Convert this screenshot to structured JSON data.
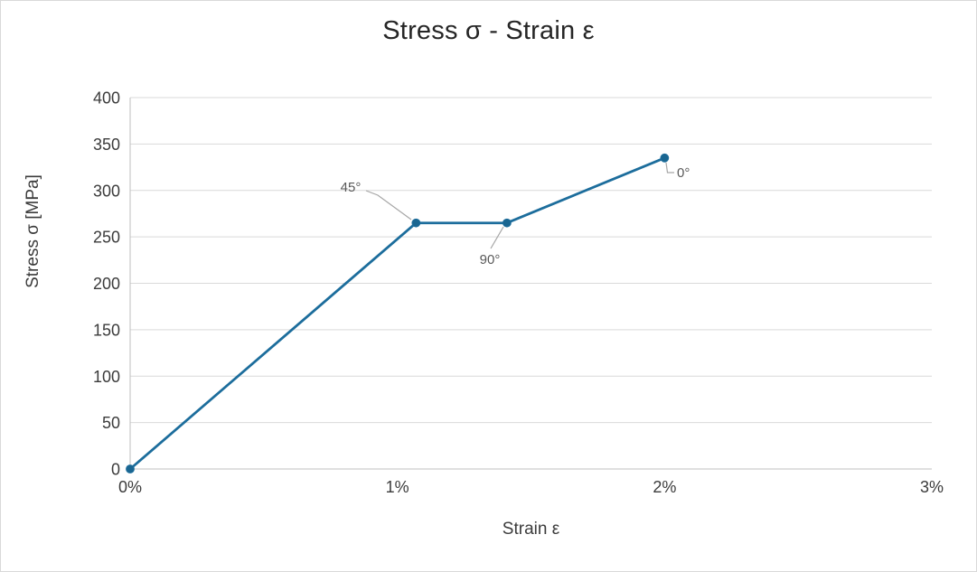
{
  "chart_data": {
    "type": "line",
    "title": "Stress σ - Strain ε",
    "xlabel": "Strain ε",
    "ylabel": "Stress σ [MPa]",
    "xlim": [
      0,
      3
    ],
    "ylim": [
      0,
      400
    ],
    "x_unit": "percent",
    "grid": "horizontal-only",
    "legend": "none",
    "x_ticks": [
      {
        "value": 0,
        "label": "0%"
      },
      {
        "value": 1,
        "label": "1%"
      },
      {
        "value": 2,
        "label": "2%"
      },
      {
        "value": 3,
        "label": "3%"
      }
    ],
    "y_ticks": [
      0,
      50,
      100,
      150,
      200,
      250,
      300,
      350,
      400
    ],
    "series": [
      {
        "name": "stress-strain-curve",
        "marker": "circle",
        "x": [
          0,
          1.07,
          1.41,
          2.0
        ],
        "y": [
          0,
          265,
          265,
          335
        ]
      }
    ],
    "annotations": [
      {
        "text": "45°",
        "x": 1.07,
        "y": 265
      },
      {
        "text": "90°",
        "x": 1.41,
        "y": 265
      },
      {
        "text": "0°",
        "x": 2.0,
        "y": 335
      }
    ],
    "colors": {
      "series_line": "#1c6d9c",
      "marker_fill": "#1a6691",
      "gridline": "#d9d9d9",
      "axis_line": "#bfbfbf",
      "leader_line": "#a6a6a6",
      "annotation_text": "#595959",
      "tick_text": "#3b3b3b",
      "title_text": "#262626"
    }
  }
}
